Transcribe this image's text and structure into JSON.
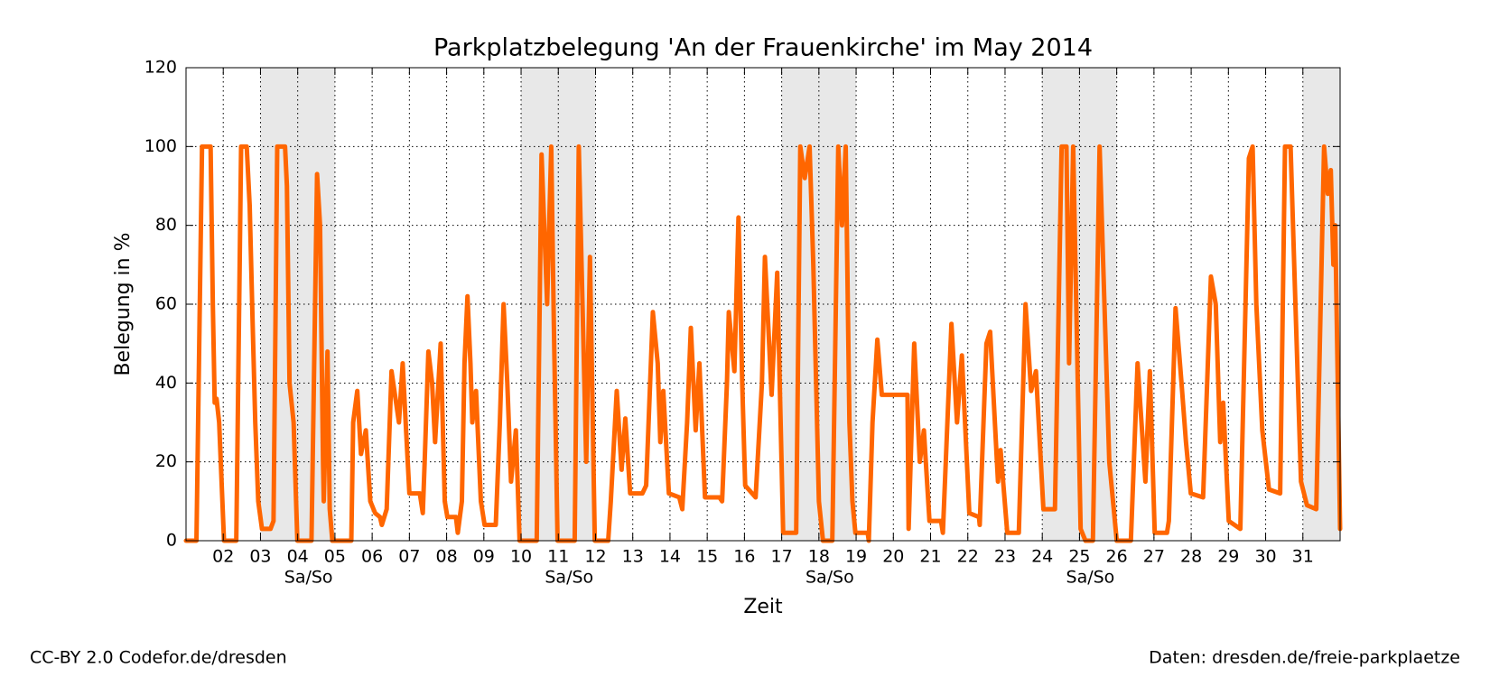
{
  "chart_data": {
    "type": "line",
    "title": "Parkplatzbelegung 'An der Frauenkirche' im May 2014",
    "xlabel": "Zeit",
    "ylabel": "Belegung in %",
    "color": "#ff6600",
    "grid": true,
    "xlim": [
      1,
      32
    ],
    "ylim": [
      0,
      120
    ],
    "yticks": [
      0,
      20,
      40,
      60,
      80,
      100,
      120
    ],
    "xticks": [
      {
        "value": 2,
        "label": "02"
      },
      {
        "value": 3,
        "label": "03"
      },
      {
        "value": 4,
        "label": "04"
      },
      {
        "value": 5,
        "label": "05"
      },
      {
        "value": 6,
        "label": "06"
      },
      {
        "value": 7,
        "label": "07"
      },
      {
        "value": 8,
        "label": "08"
      },
      {
        "value": 9,
        "label": "09"
      },
      10,
      11,
      12,
      13,
      14,
      15,
      16,
      17,
      18,
      19,
      20,
      21,
      22,
      23,
      24,
      25,
      26,
      27,
      28,
      29,
      30,
      31
    ],
    "shaded_ranges": [
      {
        "start": 3,
        "end": 5,
        "label": "Sa/So"
      },
      {
        "start": 10,
        "end": 12,
        "label": "Sa/So"
      },
      {
        "start": 17,
        "end": 19,
        "label": "Sa/So"
      },
      {
        "start": 24,
        "end": 26,
        "label": "Sa/So"
      },
      {
        "start": 31,
        "end": 32
      }
    ],
    "x": [
      1,
      1.28,
      1.43,
      1.66,
      1.72,
      1.77,
      1.82,
      1.89,
      2.02,
      2.35,
      2.48,
      2.63,
      2.71,
      2.79,
      2.86,
      2.94,
      3.04,
      3.27,
      3.35,
      3.45,
      3.66,
      3.71,
      3.78,
      3.89,
      3.99,
      4.37,
      4.52,
      4.6,
      4.68,
      4.7,
      4.8,
      4.86,
      4.93,
      5.44,
      5.49,
      5.6,
      5.7,
      5.83,
      5.95,
      6.08,
      6.21,
      6.26,
      6.39,
      6.52,
      6.72,
      6.82,
      6.9,
      7.0,
      7.28,
      7.36,
      7.41,
      7.51,
      7.61,
      7.69,
      7.84,
      7.95,
      8.02,
      8.25,
      8.3,
      8.41,
      8.48,
      8.56,
      8.64,
      8.69,
      8.79,
      8.92,
      9.02,
      9.32,
      9.43,
      9.53,
      9.63,
      9.73,
      9.86,
      9.96,
      10.42,
      10.55,
      10.7,
      10.81,
      10.88,
      10.98,
      11.44,
      11.55,
      11.65,
      11.75,
      11.85,
      11.98,
      12.34,
      12.41,
      12.57,
      12.7,
      12.8,
      12.93,
      13.26,
      13.36,
      13.54,
      13.67,
      13.74,
      13.82,
      13.97,
      14.25,
      14.33,
      14.46,
      14.56,
      14.69,
      14.79,
      14.94,
      15.33,
      15.4,
      15.53,
      15.58,
      15.73,
      15.84,
      15.94,
      16.02,
      16.3,
      16.47,
      16.55,
      16.73,
      16.88,
      17.04,
      17.39,
      17.5,
      17.62,
      17.75,
      17.85,
      18.0,
      18.11,
      18.36,
      18.52,
      18.62,
      18.72,
      18.82,
      18.9,
      18.98,
      19.31,
      19.34,
      19.44,
      19.57,
      19.69,
      20.38,
      20.41,
      20.56,
      20.71,
      20.82,
      20.97,
      21.28,
      21.33,
      21.56,
      21.71,
      21.84,
      22.04,
      22.3,
      22.32,
      22.5,
      22.6,
      22.81,
      22.88,
      23.06,
      23.37,
      23.55,
      23.7,
      23.83,
      24.03,
      24.34,
      24.52,
      24.65,
      24.72,
      24.83,
      25.03,
      25.16,
      25.36,
      25.54,
      25.67,
      25.8,
      26.0,
      26.38,
      26.56,
      26.77,
      26.89,
      27.02,
      27.35,
      27.4,
      27.58,
      27.74,
      27.86,
      27.99,
      28.32,
      28.53,
      28.66,
      28.78,
      28.86,
      29.01,
      29.32,
      29.55,
      29.65,
      29.75,
      29.91,
      30.09,
      30.39,
      30.52,
      30.67,
      30.8,
      30.95,
      31.11,
      31.36,
      31.57,
      31.67,
      31.75,
      31.82,
      31.87,
      32.0
    ],
    "values": [
      0,
      0,
      100,
      100,
      60,
      35,
      36,
      30,
      0,
      0,
      100,
      100,
      85,
      55,
      30,
      10,
      3,
      3,
      5,
      100,
      100,
      90,
      40,
      30,
      0,
      0,
      93,
      80,
      20,
      10,
      48,
      8,
      0,
      0,
      30,
      38,
      22,
      28,
      10,
      7,
      6,
      4,
      8,
      43,
      30,
      45,
      30,
      12,
      12,
      7,
      20,
      48,
      40,
      25,
      50,
      10,
      6,
      6,
      2,
      10,
      45,
      62,
      45,
      30,
      38,
      10,
      4,
      4,
      30,
      60,
      40,
      15,
      28,
      0,
      0,
      98,
      60,
      100,
      55,
      0,
      0,
      100,
      60,
      20,
      72,
      0,
      0,
      10,
      38,
      18,
      31,
      12,
      12,
      14,
      58,
      45,
      25,
      38,
      12,
      11,
      8,
      30,
      54,
      28,
      45,
      11,
      11,
      10,
      40,
      58,
      43,
      82,
      40,
      14,
      11,
      40,
      72,
      37,
      68,
      2,
      2,
      100,
      92,
      100,
      70,
      10,
      0,
      0,
      100,
      80,
      100,
      30,
      10,
      2,
      2,
      0,
      30,
      51,
      37,
      37,
      3,
      50,
      20,
      28,
      5,
      5,
      2,
      55,
      30,
      47,
      7,
      6,
      4,
      50,
      53,
      15,
      23,
      2,
      2,
      60,
      38,
      43,
      8,
      8,
      100,
      100,
      45,
      100,
      3,
      0,
      0,
      100,
      60,
      20,
      0,
      0,
      45,
      15,
      43,
      2,
      2,
      5,
      59,
      40,
      25,
      12,
      11,
      67,
      60,
      25,
      35,
      5,
      3,
      97,
      100,
      60,
      28,
      13,
      12,
      100,
      100,
      60,
      15,
      9,
      8,
      100,
      88,
      94,
      70,
      80,
      3
    ]
  },
  "footer": {
    "left": "CC-BY 2.0 Codefor.de/dresden",
    "right": "Daten: dresden.de/freie-parkplaetze"
  }
}
